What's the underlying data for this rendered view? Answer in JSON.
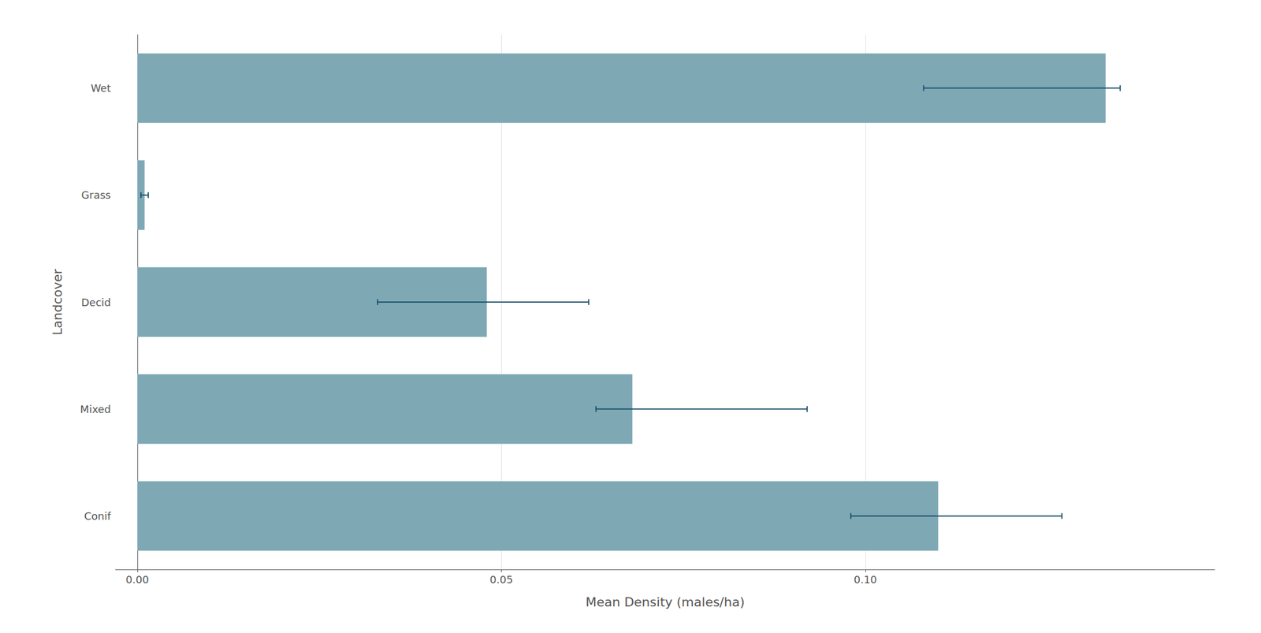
{
  "chart_data": {
    "type": "bar",
    "orientation": "horizontal",
    "categories": [
      "Conif",
      "Mixed",
      "Decid",
      "Grass",
      "Wet"
    ],
    "values": [
      0.11,
      0.068,
      0.048,
      0.001,
      0.133
    ],
    "error_bars": {
      "lower": [
        0.098,
        0.063,
        0.033,
        0.0005,
        0.108
      ],
      "upper": [
        0.127,
        0.092,
        0.062,
        0.0015,
        0.135
      ],
      "color": "#1a506b"
    },
    "color": "#7fa8b5",
    "xlabel": "Mean Density (males/ha)",
    "ylabel": "Landcover",
    "xlim": [
      -0.003,
      0.148
    ],
    "xticks": [
      {
        "value": 0.0,
        "label": "0.00"
      },
      {
        "value": 0.05,
        "label": "0.05"
      },
      {
        "value": 0.1,
        "label": "0.10"
      }
    ],
    "grid": true
  }
}
